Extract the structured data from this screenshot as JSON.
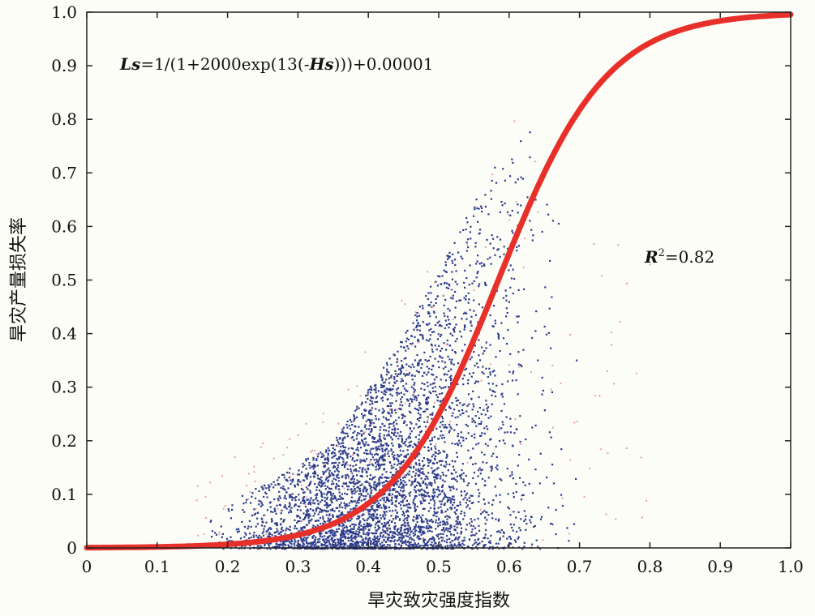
{
  "chart_data": {
    "type": "scatter",
    "title": "",
    "xlabel": "旱灾致灾强度指数",
    "ylabel": "旱灾产量损失率",
    "xlim": [
      0,
      1.0
    ],
    "ylim": [
      0,
      1.0
    ],
    "x_ticks": [
      "0",
      "0.1",
      "0.2",
      "0.3",
      "0.4",
      "0.5",
      "0.6",
      "0.7",
      "0.8",
      "0.9",
      "1.0"
    ],
    "y_ticks": [
      "0",
      "0.1",
      "0.2",
      "0.3",
      "0.4",
      "0.5",
      "0.6",
      "0.7",
      "0.8",
      "0.9",
      "1.0"
    ],
    "grid": false,
    "equation": {
      "prefix_var": "Ls",
      "part1": "=1/(1+2000exp(13(-",
      "inner_var": "Hs",
      "part2": ")))+0.00001"
    },
    "r2": {
      "var": "R",
      "sup": "2",
      "value": "=0.82"
    },
    "fit": {
      "a": 2000,
      "k": 13,
      "c": 1e-05,
      "color": "#e8302a"
    },
    "scatter_color": "#2c3a8c",
    "outlier_color": "#e8a0a0",
    "scatter_density": [
      {
        "x": 0.15,
        "ymax": 0.05
      },
      {
        "x": 0.25,
        "ymax": 0.12
      },
      {
        "x": 0.35,
        "ymax": 0.2
      },
      {
        "x": 0.4,
        "ymax": 0.3
      },
      {
        "x": 0.45,
        "ymax": 0.4
      },
      {
        "x": 0.5,
        "ymax": 0.52
      },
      {
        "x": 0.55,
        "ymax": 0.65
      },
      {
        "x": 0.6,
        "ymax": 0.76
      },
      {
        "x": 0.64,
        "ymax": 0.8
      },
      {
        "x": 0.67,
        "ymax": 0.65
      },
      {
        "x": 0.7,
        "ymax": 0.5
      }
    ]
  }
}
